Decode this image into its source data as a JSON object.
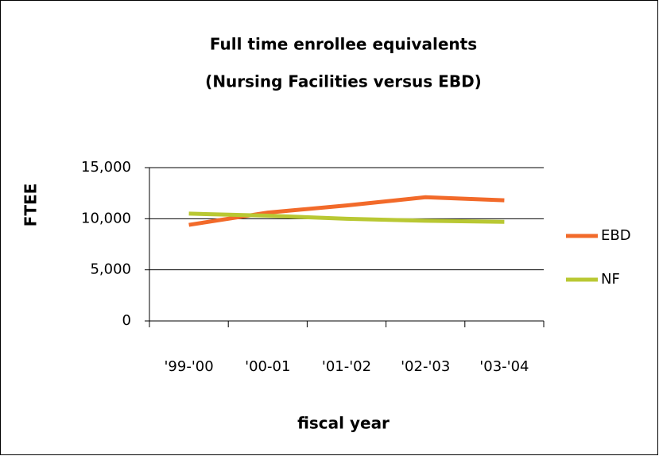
{
  "chart_data": {
    "type": "line",
    "title": "Full time enrollee equivalents",
    "subtitle": "(Nursing Facilities versus EBD)",
    "x_label": "fiscal year",
    "y_label": "FTEE",
    "categories": [
      "'99-'00",
      "'00-01",
      "'01-'02",
      "'02-'03",
      "'03-'04"
    ],
    "series": [
      {
        "name": "EBD",
        "color": "#f26a2a",
        "values": [
          9400,
          10600,
          11300,
          12100,
          11800
        ]
      },
      {
        "name": "NF",
        "color": "#b9c833",
        "values": [
          10500,
          10300,
          10000,
          9800,
          9700
        ]
      }
    ],
    "ylim": [
      0,
      15000
    ],
    "yticks": [
      0,
      {
        "value": 5000,
        "label": "5,000"
      },
      {
        "value": 10000,
        "label": "10,000"
      },
      {
        "value": 15000,
        "label": "15,000"
      }
    ],
    "grid": true,
    "legend": "right"
  }
}
